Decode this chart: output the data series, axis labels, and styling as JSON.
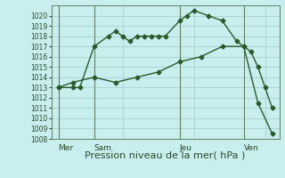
{
  "title": "Pression niveau de la mer( hPa )",
  "background_color": "#c8eeee",
  "grid_color": "#a0cccc",
  "line_color": "#2a5a2a",
  "ylim": [
    1008,
    1021
  ],
  "yticks": [
    1008,
    1009,
    1010,
    1011,
    1012,
    1013,
    1014,
    1015,
    1016,
    1017,
    1018,
    1019,
    1020
  ],
  "xlim": [
    0,
    16
  ],
  "day_labels": [
    "Mer",
    "Sam",
    "Jeu",
    "Ven"
  ],
  "day_positions": [
    0.5,
    3.0,
    9.0,
    13.5
  ],
  "vline_positions": [
    0.5,
    3.0,
    9.0,
    13.5
  ],
  "line1_x": [
    0.5,
    1.5,
    2.0,
    3.0,
    4.0,
    4.5,
    5.0,
    5.5,
    6.0,
    6.5,
    7.0,
    7.5,
    8.0,
    9.0,
    9.5,
    10.0,
    11.0,
    12.0,
    13.0,
    13.5,
    14.0,
    14.5,
    15.0,
    15.5
  ],
  "line1_y": [
    1013.0,
    1013.0,
    1013.0,
    1017.0,
    1018.0,
    1018.5,
    1018.0,
    1017.5,
    1018.0,
    1018.0,
    1018.0,
    1018.0,
    1018.0,
    1019.5,
    1020.0,
    1020.5,
    1020.0,
    1019.5,
    1017.5,
    1017.0,
    1016.5,
    1015.0,
    1013.0,
    1011.0
  ],
  "line2_x": [
    0.5,
    1.5,
    3.0,
    4.5,
    6.0,
    7.5,
    9.0,
    10.5,
    12.0,
    13.5,
    14.5,
    15.5
  ],
  "line2_y": [
    1013.0,
    1013.5,
    1014.0,
    1013.5,
    1014.0,
    1014.5,
    1015.5,
    1016.0,
    1017.0,
    1017.0,
    1011.5,
    1008.5
  ],
  "marker": "D",
  "markersize": 2.5,
  "linewidth": 1.0,
  "title_fontsize": 8,
  "ytick_fontsize": 5.5,
  "xtick_fontsize": 6.5
}
